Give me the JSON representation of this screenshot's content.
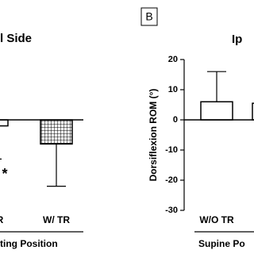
{
  "chart_data": [
    {
      "type": "bar",
      "title": "l Side",
      "xlabel": "tting Position",
      "categories": [
        "O TR",
        "W/ TR"
      ],
      "values": [
        -2,
        -8
      ],
      "errors": [
        11,
        14
      ],
      "bar_fills": [
        "plain",
        "grid"
      ],
      "color": "#000000",
      "annotations": [
        {
          "text": "*",
          "category": 0
        }
      ],
      "ylim": [
        -30,
        20
      ]
    },
    {
      "type": "bar",
      "panel_label": "B",
      "title": "Ip",
      "ylabel": "Dorsiflexion ROM (°)",
      "xlabel": "Supine Po",
      "categories": [
        "W/O TR",
        null
      ],
      "values": [
        6,
        5.5
      ],
      "errors": [
        10,
        null
      ],
      "bar_fills": [
        "plain",
        "plain"
      ],
      "color": "#000000",
      "ylim": [
        -30,
        20
      ],
      "yticks": [
        -30,
        -20,
        -10,
        0,
        10,
        20
      ]
    }
  ]
}
